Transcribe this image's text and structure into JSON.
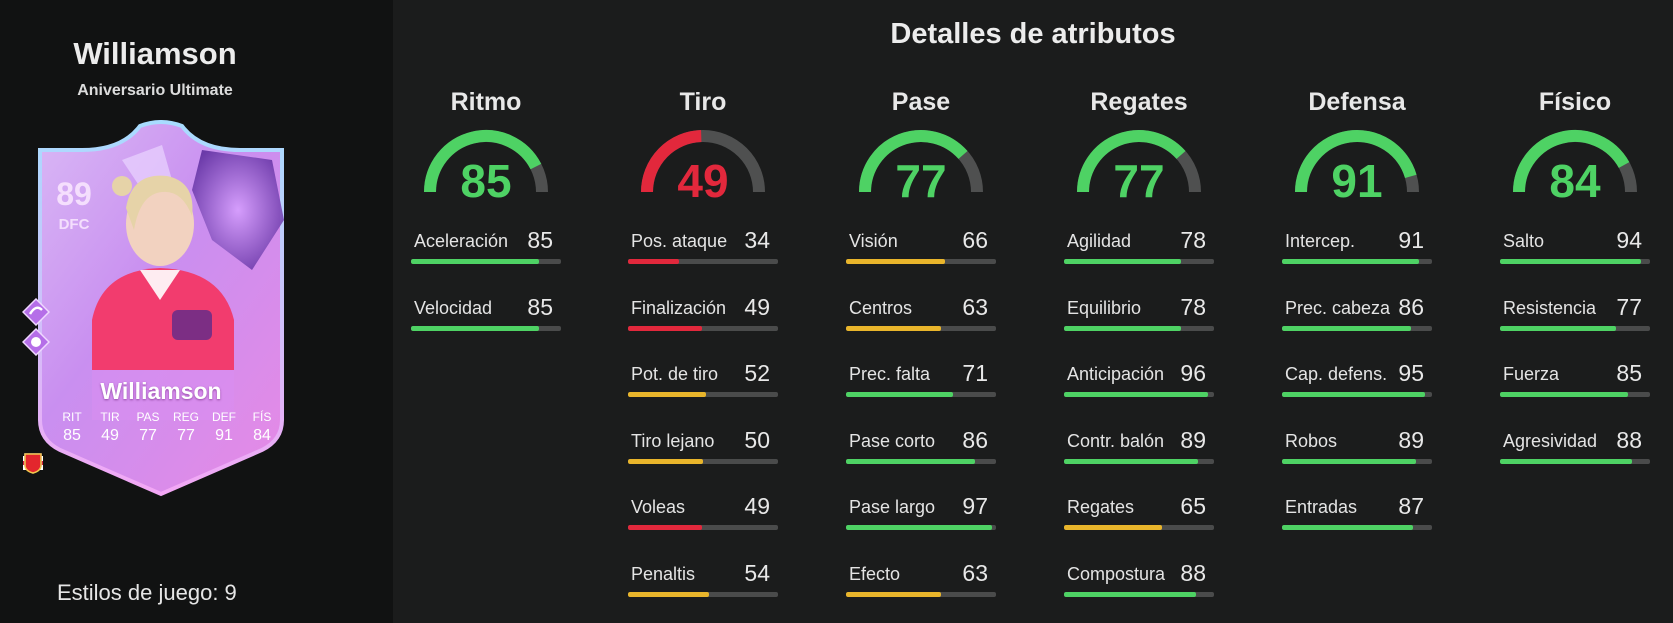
{
  "player": {
    "name": "Williamson",
    "subtitle": "Aniversario Ultimate",
    "styles_label": "Estilos de juego: 9"
  },
  "card": {
    "rating": "89",
    "position": "DFC",
    "name": "Williamson",
    "stats": [
      {
        "label": "RIT",
        "value": "85"
      },
      {
        "label": "TIR",
        "value": "49"
      },
      {
        "label": "PAS",
        "value": "77"
      },
      {
        "label": "REG",
        "value": "77"
      },
      {
        "label": "DEF",
        "value": "91"
      },
      {
        "label": "FÍS",
        "value": "84"
      }
    ]
  },
  "title": "Detalles de atributos",
  "colors": {
    "green": "#4ed264",
    "red": "#e2283c",
    "yellow": "#e9b52b",
    "track": "#4a4b4b"
  },
  "categories": [
    {
      "name": "Ritmo",
      "value": 85,
      "stats": [
        {
          "name": "Aceleración",
          "value": 85
        },
        {
          "name": "Velocidad",
          "value": 85
        }
      ]
    },
    {
      "name": "Tiro",
      "value": 49,
      "stats": [
        {
          "name": "Pos. ataque",
          "value": 34
        },
        {
          "name": "Finalización",
          "value": 49
        },
        {
          "name": "Pot. de tiro",
          "value": 52
        },
        {
          "name": "Tiro lejano",
          "value": 50
        },
        {
          "name": "Voleas",
          "value": 49
        },
        {
          "name": "Penaltis",
          "value": 54
        }
      ]
    },
    {
      "name": "Pase",
      "value": 77,
      "stats": [
        {
          "name": "Visión",
          "value": 66
        },
        {
          "name": "Centros",
          "value": 63
        },
        {
          "name": "Prec. falta",
          "value": 71
        },
        {
          "name": "Pase corto",
          "value": 86
        },
        {
          "name": "Pase largo",
          "value": 97
        },
        {
          "name": "Efecto",
          "value": 63
        }
      ]
    },
    {
      "name": "Regates",
      "value": 77,
      "stats": [
        {
          "name": "Agilidad",
          "value": 78
        },
        {
          "name": "Equilibrio",
          "value": 78
        },
        {
          "name": "Anticipación",
          "value": 96
        },
        {
          "name": "Contr. balón",
          "value": 89
        },
        {
          "name": "Regates",
          "value": 65
        },
        {
          "name": "Compostura",
          "value": 88
        }
      ]
    },
    {
      "name": "Defensa",
      "value": 91,
      "stats": [
        {
          "name": "Intercep.",
          "value": 91
        },
        {
          "name": "Prec. cabeza",
          "value": 86
        },
        {
          "name": "Cap. defens.",
          "value": 95
        },
        {
          "name": "Robos",
          "value": 89
        },
        {
          "name": "Entradas",
          "value": 87
        }
      ]
    },
    {
      "name": "Físico",
      "value": 84,
      "stats": [
        {
          "name": "Salto",
          "value": 94
        },
        {
          "name": "Resistencia",
          "value": 77
        },
        {
          "name": "Fuerza",
          "value": 85
        },
        {
          "name": "Agresividad",
          "value": 88
        }
      ]
    }
  ]
}
